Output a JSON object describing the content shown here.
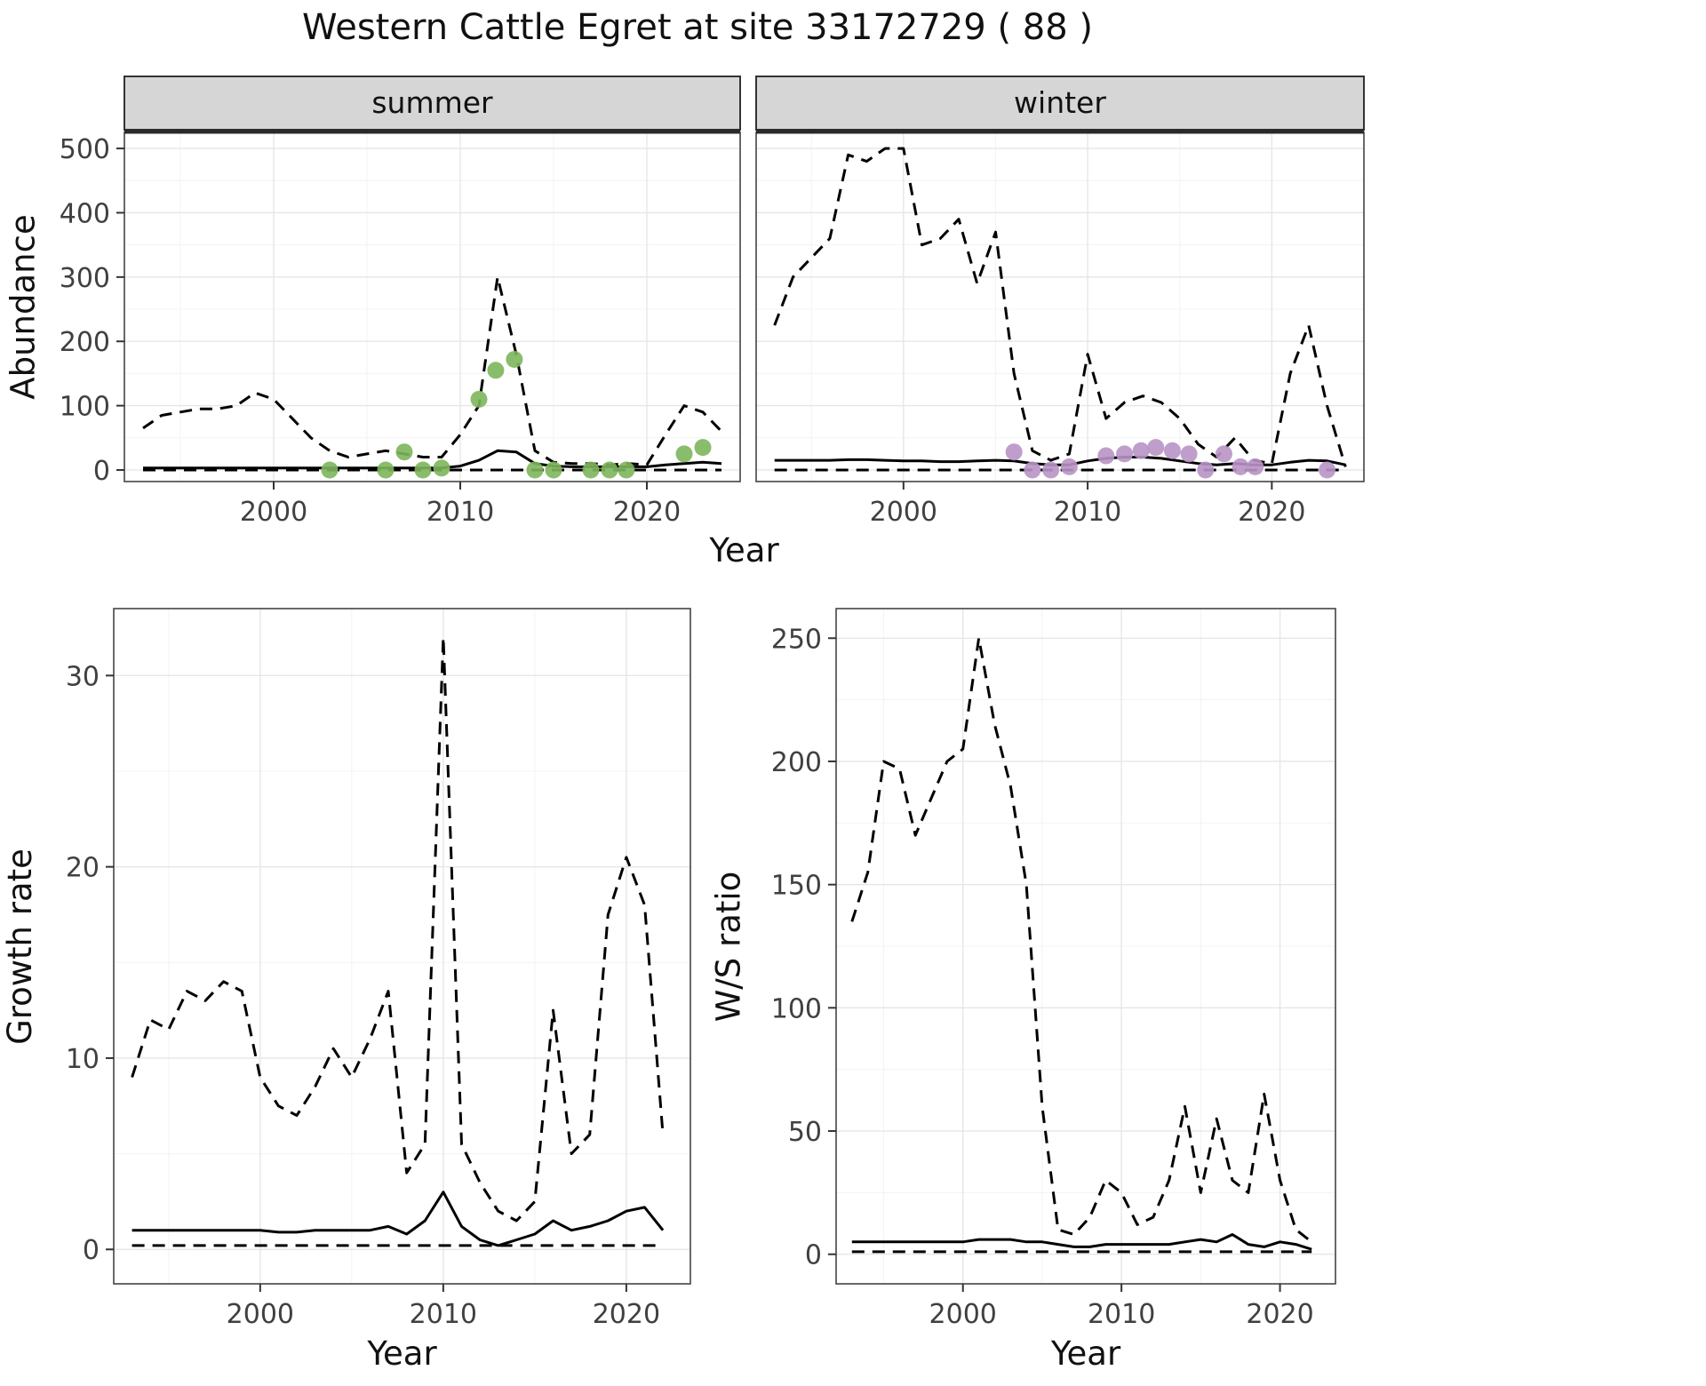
{
  "title": "Western Cattle Egret at site 33172729 ( 88 )",
  "colors": {
    "line": "#000000",
    "summer_point": "#7cb65b",
    "winter_point": "#b894c6",
    "strip_bg": "#d6d6d6",
    "strip_border": "#333333",
    "strip_text": "#111111",
    "panel_border": "#444444",
    "grid_major": "#e6e6e6",
    "grid_minor": "#f3f3f3",
    "tick_label": "#404040"
  },
  "chart_data": [
    {
      "id": "summer",
      "type": "line",
      "strip": "summer",
      "xlabel": "Year",
      "ylabel": "Abundance",
      "xlim": [
        1992,
        2025
      ],
      "ylim": [
        -18,
        525
      ],
      "xticks": [
        2000,
        2010,
        2020
      ],
      "yticks": [
        0,
        100,
        200,
        300,
        400,
        500
      ],
      "series": [
        {
          "name": "upper_ci",
          "kind": "dashed",
          "x": [
            1993,
            1994,
            1995,
            1996,
            1997,
            1998,
            1999,
            2000,
            2001,
            2002,
            2003,
            2004,
            2005,
            2006,
            2007,
            2008,
            2009,
            2010,
            2011,
            2012,
            2013,
            2014,
            2015,
            2016,
            2017,
            2018,
            2019,
            2020,
            2021,
            2022,
            2023,
            2024
          ],
          "y": [
            65,
            85,
            90,
            95,
            95,
            100,
            120,
            110,
            80,
            50,
            30,
            20,
            25,
            30,
            25,
            20,
            20,
            55,
            100,
            300,
            180,
            30,
            12,
            10,
            10,
            8,
            10,
            8,
            55,
            100,
            90,
            60
          ]
        },
        {
          "name": "median",
          "kind": "solid",
          "x": [
            1993,
            1994,
            1995,
            1996,
            1997,
            1998,
            1999,
            2000,
            2001,
            2002,
            2003,
            2004,
            2005,
            2006,
            2007,
            2008,
            2009,
            2010,
            2011,
            2012,
            2013,
            2014,
            2015,
            2016,
            2017,
            2018,
            2019,
            2020,
            2021,
            2022,
            2023,
            2024
          ],
          "y": [
            3,
            3,
            3,
            3,
            3,
            3,
            3,
            3,
            3,
            3,
            3,
            3,
            3,
            3,
            3,
            3,
            3,
            6,
            15,
            30,
            28,
            10,
            6,
            5,
            5,
            5,
            5,
            5,
            8,
            10,
            12,
            10
          ]
        },
        {
          "name": "lower_ci",
          "kind": "dashed",
          "x": [
            1993,
            1994,
            1995,
            1996,
            1997,
            1998,
            1999,
            2000,
            2001,
            2002,
            2003,
            2004,
            2005,
            2006,
            2007,
            2008,
            2009,
            2010,
            2011,
            2012,
            2013,
            2014,
            2015,
            2016,
            2017,
            2018,
            2019,
            2020,
            2021,
            2022,
            2023,
            2024
          ],
          "y": [
            0,
            0,
            0,
            0,
            0,
            0,
            0,
            0,
            0,
            0,
            0,
            0,
            0,
            0,
            0,
            0,
            0,
            0,
            0,
            0,
            0,
            0,
            0,
            0,
            0,
            0,
            0,
            0,
            0,
            0,
            0,
            0
          ]
        },
        {
          "name": "observed",
          "kind": "points",
          "color_key": "summer_point",
          "x": [
            2003,
            2006,
            2007,
            2008,
            2009,
            2011,
            2011.9,
            2012.9,
            2014,
            2015,
            2017,
            2018,
            2018.9,
            2022,
            2023
          ],
          "y": [
            0,
            0,
            28,
            0,
            3,
            110,
            155,
            172,
            0,
            0,
            0,
            0,
            0,
            25,
            35
          ]
        }
      ]
    },
    {
      "id": "winter",
      "type": "line",
      "strip": "winter",
      "xlabel": "Year",
      "ylabel": "Abundance",
      "xlim": [
        1992,
        2025
      ],
      "ylim": [
        -18,
        525
      ],
      "xticks": [
        2000,
        2010,
        2020
      ],
      "yticks": [
        0,
        100,
        200,
        300,
        400,
        500
      ],
      "series": [
        {
          "name": "upper_ci",
          "kind": "dashed",
          "x": [
            1993,
            1994,
            1995,
            1996,
            1997,
            1998,
            1999,
            2000,
            2001,
            2002,
            2003,
            2004,
            2005,
            2006,
            2007,
            2008,
            2009,
            2010,
            2011,
            2012,
            2013,
            2014,
            2015,
            2016,
            2017,
            2018,
            2019,
            2020,
            2021,
            2022,
            2023,
            2024
          ],
          "y": [
            225,
            300,
            330,
            360,
            490,
            480,
            500,
            500,
            350,
            360,
            390,
            290,
            370,
            150,
            30,
            15,
            25,
            180,
            80,
            105,
            115,
            105,
            80,
            40,
            20,
            50,
            15,
            10,
            150,
            225,
            100,
            5
          ]
        },
        {
          "name": "median",
          "kind": "solid",
          "x": [
            1993,
            1994,
            1995,
            1996,
            1997,
            1998,
            1999,
            2000,
            2001,
            2002,
            2003,
            2004,
            2005,
            2006,
            2007,
            2008,
            2009,
            2010,
            2011,
            2012,
            2013,
            2014,
            2015,
            2016,
            2017,
            2018,
            2019,
            2020,
            2021,
            2022,
            2023,
            2024
          ],
          "y": [
            15,
            15,
            15,
            15,
            16,
            16,
            15,
            14,
            14,
            13,
            13,
            14,
            15,
            14,
            10,
            8,
            8,
            14,
            18,
            20,
            20,
            18,
            14,
            10,
            8,
            10,
            8,
            8,
            12,
            15,
            14,
            8
          ]
        },
        {
          "name": "lower_ci",
          "kind": "dashed",
          "x": [
            1993,
            1994,
            1995,
            1996,
            1997,
            1998,
            1999,
            2000,
            2001,
            2002,
            2003,
            2004,
            2005,
            2006,
            2007,
            2008,
            2009,
            2010,
            2011,
            2012,
            2013,
            2014,
            2015,
            2016,
            2017,
            2018,
            2019,
            2020,
            2021,
            2022,
            2023,
            2024
          ],
          "y": [
            0,
            0,
            0,
            0,
            0,
            0,
            0,
            0,
            0,
            0,
            0,
            0,
            0,
            0,
            0,
            0,
            0,
            0,
            0,
            0,
            0,
            0,
            0,
            0,
            0,
            0,
            0,
            0,
            0,
            0,
            0,
            0
          ]
        },
        {
          "name": "observed",
          "kind": "points",
          "color_key": "winter_point",
          "x": [
            2006,
            2007,
            2008,
            2009,
            2011,
            2012,
            2012.9,
            2013.7,
            2014.6,
            2015.5,
            2016.4,
            2017.4,
            2018.3,
            2019.1,
            2023
          ],
          "y": [
            28,
            0,
            0,
            5,
            22,
            25,
            30,
            35,
            30,
            25,
            0,
            25,
            5,
            5,
            0
          ]
        }
      ]
    },
    {
      "id": "growth",
      "type": "line",
      "strip": null,
      "xlabel": "Year",
      "ylabel": "Growth rate",
      "xlim": [
        1992,
        2023.5
      ],
      "ylim": [
        -1.8,
        33.5
      ],
      "xticks": [
        2000,
        2010,
        2020
      ],
      "yticks": [
        0,
        10,
        20,
        30
      ],
      "series": [
        {
          "name": "upper_ci",
          "kind": "dashed",
          "x": [
            1993,
            1994,
            1995,
            1996,
            1997,
            1998,
            1999,
            2000,
            2001,
            2002,
            2003,
            2004,
            2005,
            2006,
            2007,
            2008,
            2009,
            2010,
            2011,
            2012,
            2013,
            2014,
            2015,
            2016,
            2017,
            2018,
            2019,
            2020,
            2021,
            2022
          ],
          "y": [
            9,
            12,
            11.5,
            13.5,
            13,
            14,
            13.5,
            9,
            7.5,
            7,
            8.5,
            10.5,
            9,
            11,
            13.5,
            4,
            5.5,
            32,
            5.5,
            3.5,
            2,
            1.5,
            2.5,
            12.5,
            5,
            6,
            17.5,
            20.5,
            18,
            6
          ]
        },
        {
          "name": "median",
          "kind": "solid",
          "x": [
            1993,
            1994,
            1995,
            1996,
            1997,
            1998,
            1999,
            2000,
            2001,
            2002,
            2003,
            2004,
            2005,
            2006,
            2007,
            2008,
            2009,
            2010,
            2011,
            2012,
            2013,
            2014,
            2015,
            2016,
            2017,
            2018,
            2019,
            2020,
            2021,
            2022
          ],
          "y": [
            1,
            1,
            1,
            1,
            1,
            1,
            1,
            1,
            0.9,
            0.9,
            1,
            1,
            1,
            1,
            1.2,
            0.8,
            1.5,
            3,
            1.2,
            0.5,
            0.2,
            0.5,
            0.8,
            1.5,
            1,
            1.2,
            1.5,
            2,
            2.2,
            1
          ]
        },
        {
          "name": "lower_ci",
          "kind": "dashed",
          "x": [
            1993,
            1994,
            1995,
            1996,
            1997,
            1998,
            1999,
            2000,
            2001,
            2002,
            2003,
            2004,
            2005,
            2006,
            2007,
            2008,
            2009,
            2010,
            2011,
            2012,
            2013,
            2014,
            2015,
            2016,
            2017,
            2018,
            2019,
            2020,
            2021,
            2022
          ],
          "y": [
            0.2,
            0.2,
            0.2,
            0.2,
            0.2,
            0.2,
            0.2,
            0.2,
            0.2,
            0.2,
            0.2,
            0.2,
            0.2,
            0.2,
            0.2,
            0.2,
            0.2,
            0.2,
            0.2,
            0.2,
            0.2,
            0.2,
            0.2,
            0.2,
            0.2,
            0.2,
            0.2,
            0.2,
            0.2,
            0.2
          ]
        }
      ]
    },
    {
      "id": "ws",
      "type": "line",
      "strip": null,
      "xlabel": "Year",
      "ylabel": "W/S ratio",
      "xlim": [
        1992,
        2023.5
      ],
      "ylim": [
        -12,
        262
      ],
      "xticks": [
        2000,
        2010,
        2020
      ],
      "yticks": [
        0,
        50,
        100,
        150,
        200,
        250
      ],
      "series": [
        {
          "name": "upper_ci",
          "kind": "dashed",
          "x": [
            1993,
            1994,
            1995,
            1996,
            1997,
            1998,
            1999,
            2000,
            2001,
            2002,
            2003,
            2004,
            2005,
            2006,
            2007,
            2008,
            2009,
            2010,
            2011,
            2012,
            2013,
            2014,
            2015,
            2016,
            2017,
            2018,
            2019,
            2020,
            2021,
            2022
          ],
          "y": [
            135,
            155,
            200,
            197,
            170,
            185,
            200,
            205,
            250,
            215,
            190,
            150,
            60,
            10,
            8,
            15,
            30,
            25,
            12,
            15,
            30,
            60,
            25,
            55,
            30,
            25,
            65,
            30,
            10,
            5
          ]
        },
        {
          "name": "median",
          "kind": "solid",
          "x": [
            1993,
            1994,
            1995,
            1996,
            1997,
            1998,
            1999,
            2000,
            2001,
            2002,
            2003,
            2004,
            2005,
            2006,
            2007,
            2008,
            2009,
            2010,
            2011,
            2012,
            2013,
            2014,
            2015,
            2016,
            2017,
            2018,
            2019,
            2020,
            2021,
            2022
          ],
          "y": [
            5,
            5,
            5,
            5,
            5,
            5,
            5,
            5,
            6,
            6,
            6,
            5,
            5,
            4,
            3,
            3,
            4,
            4,
            4,
            4,
            4,
            5,
            6,
            5,
            8,
            4,
            3,
            5,
            4,
            2
          ]
        },
        {
          "name": "lower_ci",
          "kind": "dashed",
          "x": [
            1993,
            1994,
            1995,
            1996,
            1997,
            1998,
            1999,
            2000,
            2001,
            2002,
            2003,
            2004,
            2005,
            2006,
            2007,
            2008,
            2009,
            2010,
            2011,
            2012,
            2013,
            2014,
            2015,
            2016,
            2017,
            2018,
            2019,
            2020,
            2021,
            2022
          ],
          "y": [
            1,
            1,
            1,
            1,
            1,
            1,
            1,
            1,
            1,
            1,
            1,
            1,
            1,
            1,
            1,
            1,
            1,
            1,
            1,
            1,
            1,
            1,
            1,
            1,
            1,
            1,
            1,
            1,
            1,
            1
          ]
        }
      ]
    }
  ]
}
